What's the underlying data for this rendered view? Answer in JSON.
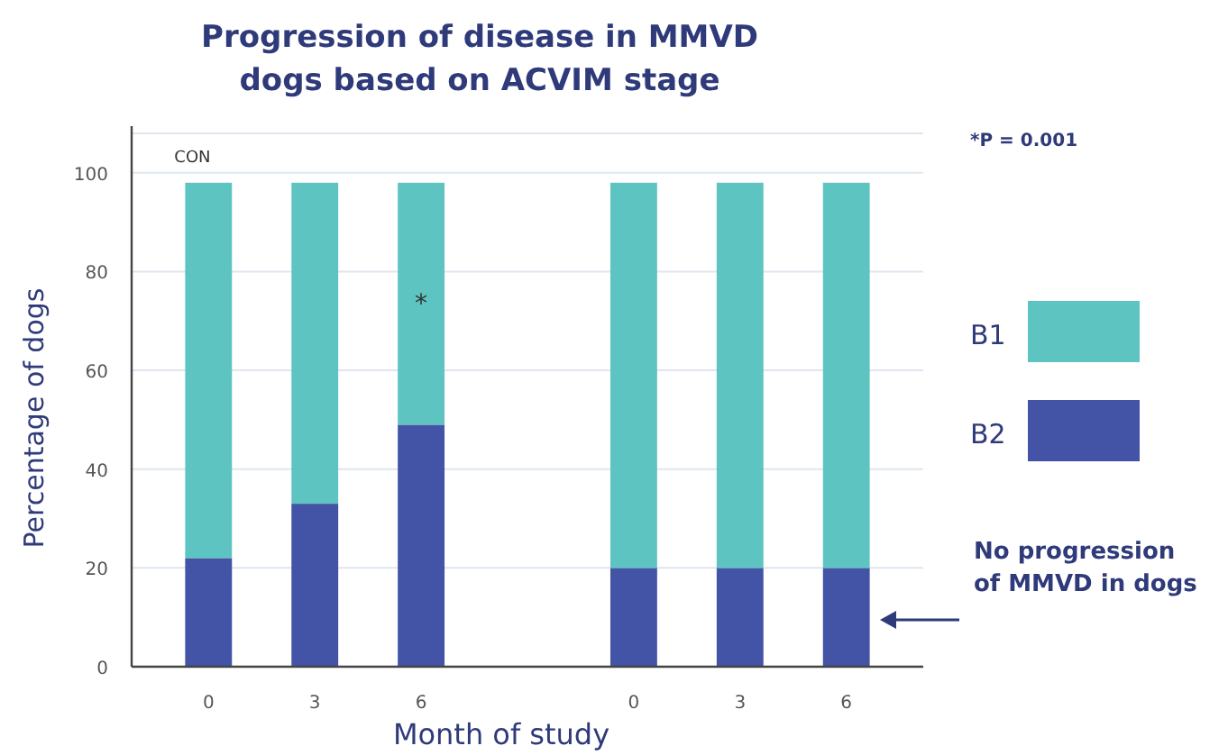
{
  "chart_data": {
    "type": "bar",
    "title": "Progression of disease in MMVD dogs based on ACVIM stage",
    "xlabel": "Month of study",
    "ylabel": "Percentage of dogs",
    "categories": [
      "0",
      "3",
      "6",
      null,
      "0",
      "3",
      "6"
    ],
    "stacked": true,
    "series": [
      {
        "name": "B2",
        "color": "#4353a6",
        "values": [
          22,
          33,
          49,
          null,
          20,
          20,
          20
        ]
      },
      {
        "name": "B1",
        "color": "#5ec4c2",
        "values": [
          76,
          65,
          49,
          null,
          78,
          78,
          78
        ]
      }
    ],
    "ylim": [
      0,
      108
    ],
    "yticks": [
      0,
      20,
      40,
      60,
      80,
      100
    ],
    "grid": "y",
    "legend": "right",
    "annotations": [
      "CON",
      "*",
      "*P = 0.001",
      "No progression of MMVD in dogs"
    ]
  }
}
